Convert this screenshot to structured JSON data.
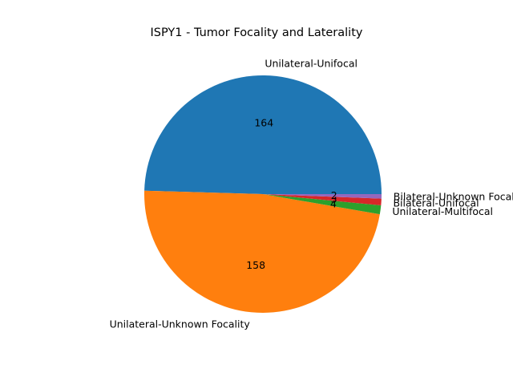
{
  "chart_data": {
    "type": "pie",
    "title": "ISPY1 - Tumor Focality and Laterality",
    "start_angle_deg": 0,
    "direction": "counterclockwise",
    "slices": [
      {
        "label": "Unilateral-Unifocal",
        "value": 164,
        "value_label": "164",
        "color": "#1f77b4"
      },
      {
        "label": "Unilateral-Unknown Focality",
        "value": 158,
        "value_label": "158",
        "color": "#ff7f0e"
      },
      {
        "label": "Unilateral-Multifocal",
        "value": 4,
        "value_label": "4",
        "color": "#2ca02c"
      },
      {
        "label": "Bilateral-Unifocal",
        "value": 3,
        "value_label": "3",
        "color": "#d62728"
      },
      {
        "label": "Bilateral-Unknown Focality",
        "value": 2,
        "value_label": "2",
        "color": "#9467bd"
      }
    ]
  }
}
